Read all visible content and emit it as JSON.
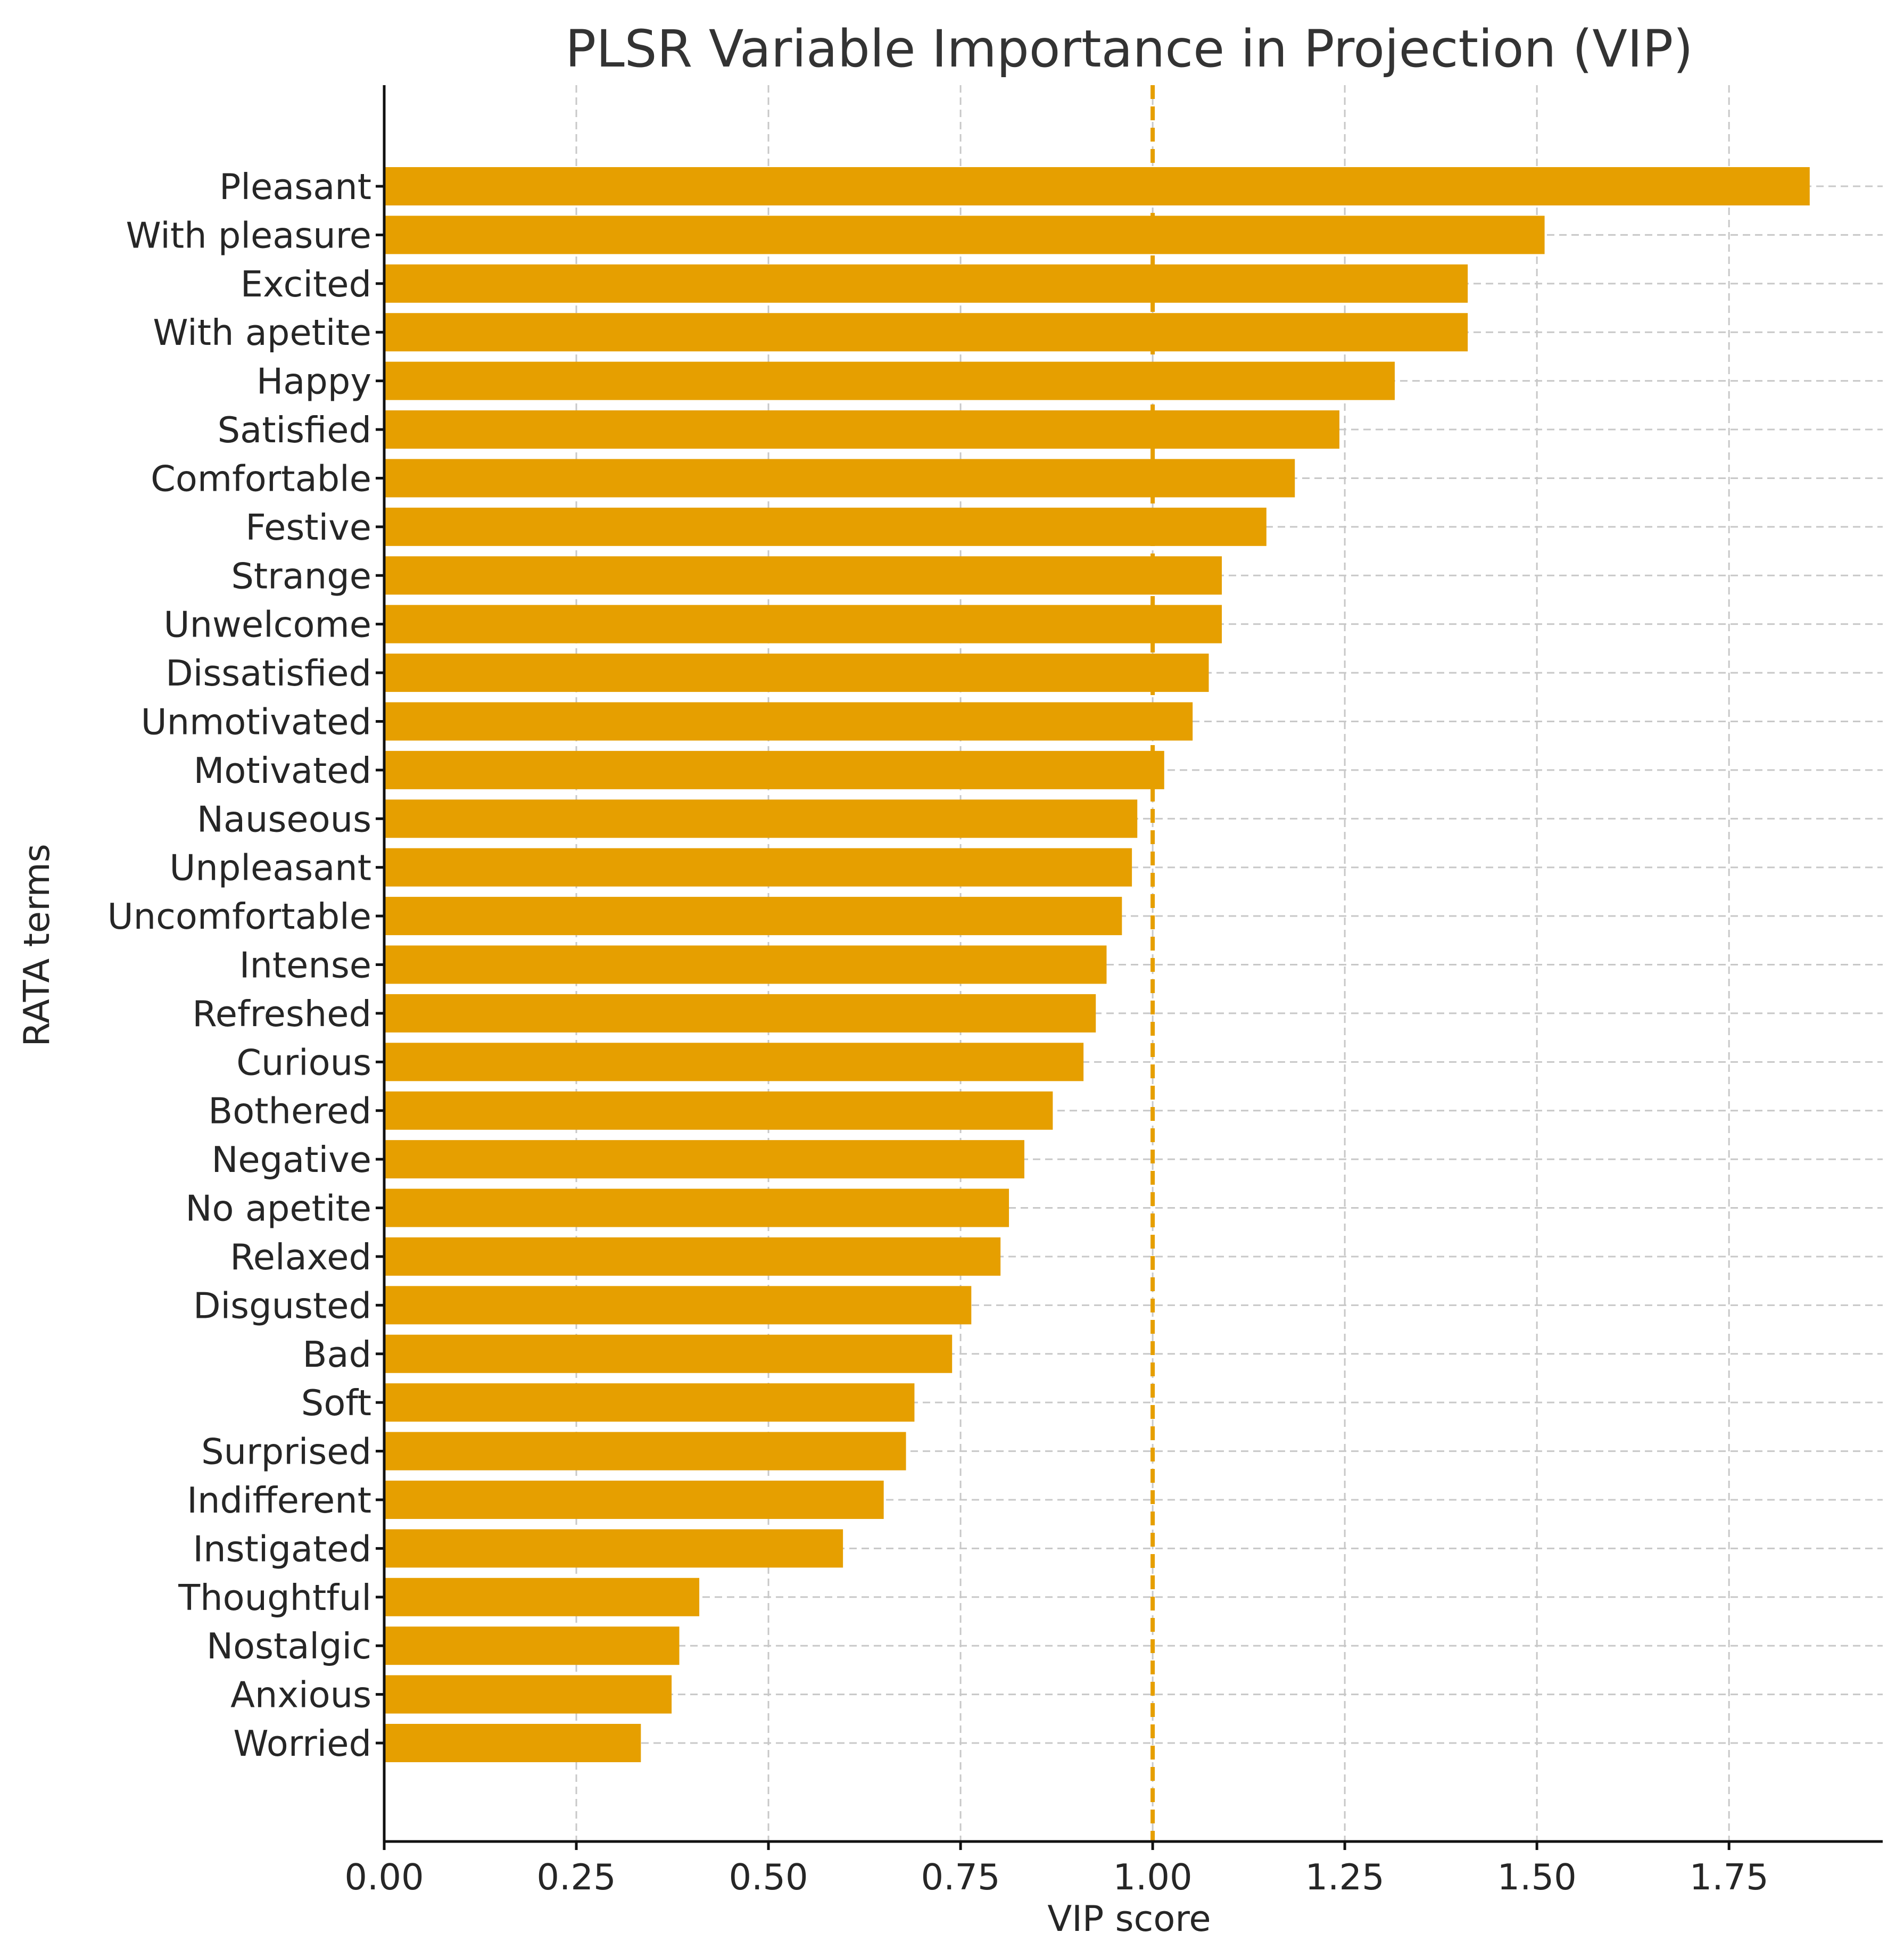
{
  "chart_data": {
    "type": "bar",
    "orientation": "horizontal",
    "title": "PLSR Variable Importance in Projection (VIP)",
    "xlabel": "VIP score",
    "ylabel": "RATA terms",
    "xlim": [
      0,
      1.95
    ],
    "xticks": [
      0.0,
      0.25,
      0.5,
      0.75,
      1.0,
      1.25,
      1.5,
      1.75
    ],
    "xtick_labels": [
      "0.00",
      "0.25",
      "0.50",
      "0.75",
      "1.00",
      "1.25",
      "1.50",
      "1.75"
    ],
    "grid": true,
    "bar_color": "#E69F00",
    "threshold": 1.0,
    "threshold_color": "#E69F00",
    "threshold_style": "dashed",
    "categories": [
      "Pleasant",
      "With pleasure",
      "Excited",
      "With apetite",
      "Happy",
      "Satisfied",
      "Comfortable",
      "Festive",
      "Strange",
      "Unwelcome",
      "Dissatisfied",
      "Unmotivated",
      "Motivated",
      "Nauseous",
      "Unpleasant",
      "Uncomfortable",
      "Intense",
      "Refreshed",
      "Curious",
      "Bothered",
      "Negative",
      "No apetite",
      "Relaxed",
      "Disgusted",
      "Bad",
      "Soft",
      "Surprised",
      "Indifferent",
      "Instigated",
      "Thoughtful",
      "Nostalgic",
      "Anxious",
      "Worried"
    ],
    "values": [
      1.855,
      1.51,
      1.41,
      1.41,
      1.315,
      1.243,
      1.185,
      1.148,
      1.09,
      1.09,
      1.073,
      1.052,
      1.015,
      0.98,
      0.973,
      0.96,
      0.94,
      0.926,
      0.91,
      0.87,
      0.833,
      0.813,
      0.802,
      0.764,
      0.739,
      0.69,
      0.679,
      0.65,
      0.597,
      0.41,
      0.384,
      0.374,
      0.334
    ]
  }
}
